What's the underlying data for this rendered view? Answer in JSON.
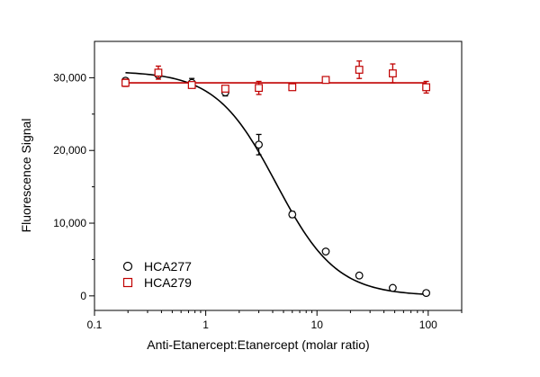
{
  "chart_data": {
    "type": "scatter",
    "title": "",
    "xlabel": "Anti-Etanercept:Etanercept (molar ratio)",
    "ylabel": "Fluorescence Signal",
    "xscale": "log",
    "xlim": [
      0.1,
      200
    ],
    "ylim": [
      -2000,
      35000
    ],
    "xticks": [
      0.1,
      1,
      10,
      100
    ],
    "xtick_labels": [
      "0.1",
      "1",
      "10",
      "100"
    ],
    "yticks": [
      0,
      10000,
      20000,
      30000
    ],
    "ytick_labels": [
      "0",
      "10,000",
      "20,000",
      "30,000"
    ],
    "grid": false,
    "legend_position": "bottom-left",
    "series": [
      {
        "name": "HCA277",
        "marker": "circle",
        "color": "#000000",
        "x": [
          0.19,
          0.375,
          0.75,
          1.5,
          3,
          6,
          12,
          24,
          48,
          96
        ],
        "y": [
          29600,
          30400,
          29300,
          28000,
          20800,
          11200,
          6100,
          2800,
          1100,
          400
        ],
        "err": [
          300,
          300,
          600,
          500,
          1400,
          400,
          300,
          300,
          200,
          300
        ],
        "fit": {
          "type": "four-parameter logistic",
          "top": 30900,
          "bottom": 0,
          "ec50": 4.3,
          "hill": 1.6
        }
      },
      {
        "name": "HCA279",
        "marker": "square",
        "color": "#c00000",
        "x": [
          0.19,
          0.375,
          0.75,
          1.5,
          3,
          6,
          12,
          24,
          48,
          96
        ],
        "y": [
          29300,
          30700,
          29000,
          28500,
          28600,
          28700,
          29700,
          31100,
          30600,
          28700
        ],
        "err": [
          500,
          900,
          300,
          300,
          900,
          300,
          300,
          1200,
          1300,
          800
        ],
        "fit": {
          "type": "constant",
          "value": 29300
        }
      }
    ]
  }
}
